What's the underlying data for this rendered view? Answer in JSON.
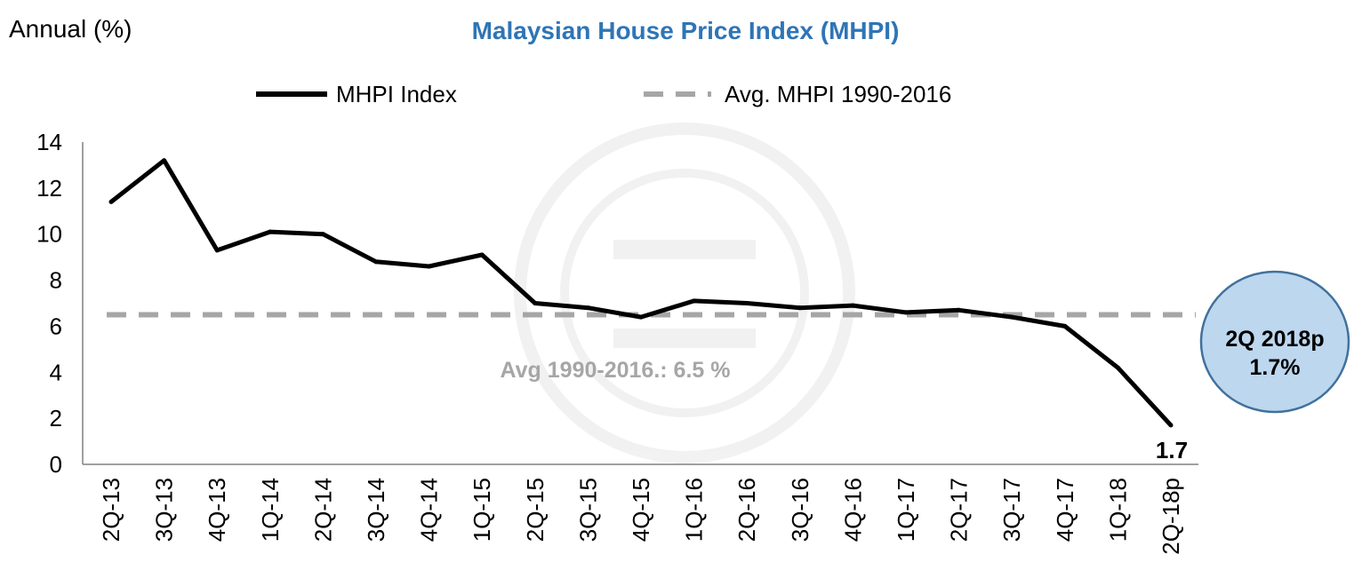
{
  "chart_data": {
    "type": "line",
    "title": "Malaysian House Price Index (MHPI)",
    "ylabel": "Annual (%)",
    "xlabel": "",
    "ylim": [
      0,
      14
    ],
    "y_ticks": [
      0,
      2,
      4,
      6,
      8,
      10,
      12,
      14
    ],
    "categories": [
      "2Q-13",
      "3Q-13",
      "4Q-13",
      "1Q-14",
      "2Q-14",
      "3Q-14",
      "4Q-14",
      "1Q-15",
      "2Q-15",
      "3Q-15",
      "4Q-15",
      "1Q-16",
      "2Q-16",
      "3Q-16",
      "4Q-16",
      "1Q-17",
      "2Q-17",
      "3Q-17",
      "4Q-17",
      "1Q-18",
      "2Q-18p"
    ],
    "series": [
      {
        "name": "MHPI Index",
        "style": "solid",
        "color": "#000000",
        "values": [
          11.4,
          13.2,
          9.3,
          10.1,
          10.0,
          8.8,
          8.6,
          9.1,
          7.0,
          6.8,
          6.4,
          7.1,
          7.0,
          6.8,
          6.9,
          6.6,
          6.7,
          6.4,
          6.0,
          4.2,
          1.7
        ]
      },
      {
        "name": "Avg. MHPI 1990-2016",
        "style": "dashed",
        "color": "#a6a6a6",
        "value": 6.5
      }
    ],
    "legend": [
      "MHPI Index",
      "Avg. MHPI 1990-2016"
    ],
    "legend_position": "top",
    "annotations": {
      "avg_label": "Avg 1990-2016.: 6.5 %",
      "last_value_label": "1.7",
      "callout_line1": "2Q 2018p",
      "callout_line2": "1.7%"
    },
    "colors": {
      "title": "#2e75b6",
      "avg_label": "#a6a6a6",
      "callout_fill": "#bdd7ee",
      "callout_stroke": "#41719c",
      "axis": "#808080"
    }
  }
}
